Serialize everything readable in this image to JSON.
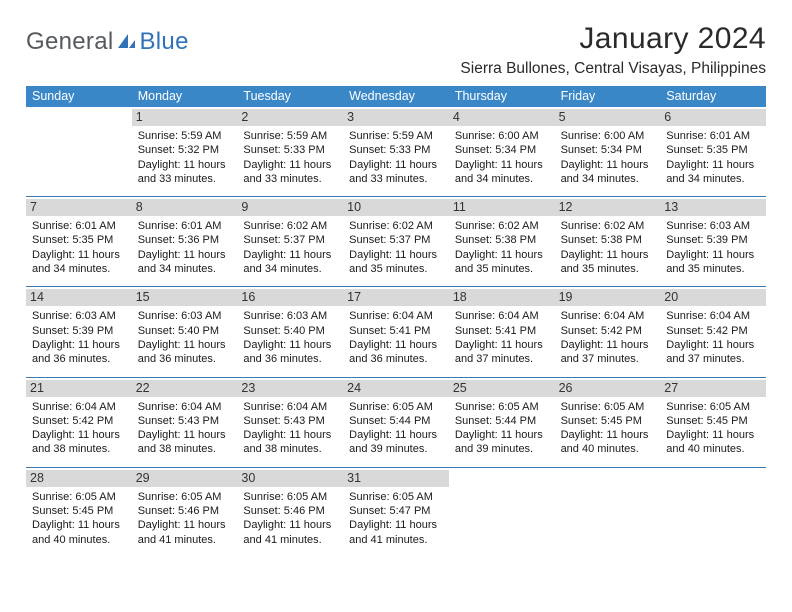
{
  "colors": {
    "header_bar": "#3a87c8",
    "header_text": "#ffffff",
    "daynum_bg": "#d9d9d9",
    "week_divider": "#3a7ab1",
    "logo_gray": "#555a5f",
    "logo_blue": "#2f72b8"
  },
  "logo": {
    "general": "General",
    "blue": "Blue"
  },
  "title": "January 2024",
  "location": "Sierra Bullones, Central Visayas, Philippines",
  "weekdays": [
    "Sunday",
    "Monday",
    "Tuesday",
    "Wednesday",
    "Thursday",
    "Friday",
    "Saturday"
  ],
  "layout": {
    "columns": 7,
    "rows": 5,
    "cell_font_size_pt": 8,
    "header_font_size_pt": 9
  },
  "weeks": [
    [
      {
        "blank": true
      },
      {
        "n": "1",
        "sunrise": "5:59 AM",
        "sunset": "5:32 PM",
        "dh": "11",
        "dm": "33"
      },
      {
        "n": "2",
        "sunrise": "5:59 AM",
        "sunset": "5:33 PM",
        "dh": "11",
        "dm": "33"
      },
      {
        "n": "3",
        "sunrise": "5:59 AM",
        "sunset": "5:33 PM",
        "dh": "11",
        "dm": "33"
      },
      {
        "n": "4",
        "sunrise": "6:00 AM",
        "sunset": "5:34 PM",
        "dh": "11",
        "dm": "34"
      },
      {
        "n": "5",
        "sunrise": "6:00 AM",
        "sunset": "5:34 PM",
        "dh": "11",
        "dm": "34"
      },
      {
        "n": "6",
        "sunrise": "6:01 AM",
        "sunset": "5:35 PM",
        "dh": "11",
        "dm": "34"
      }
    ],
    [
      {
        "n": "7",
        "sunrise": "6:01 AM",
        "sunset": "5:35 PM",
        "dh": "11",
        "dm": "34"
      },
      {
        "n": "8",
        "sunrise": "6:01 AM",
        "sunset": "5:36 PM",
        "dh": "11",
        "dm": "34"
      },
      {
        "n": "9",
        "sunrise": "6:02 AM",
        "sunset": "5:37 PM",
        "dh": "11",
        "dm": "34"
      },
      {
        "n": "10",
        "sunrise": "6:02 AM",
        "sunset": "5:37 PM",
        "dh": "11",
        "dm": "35"
      },
      {
        "n": "11",
        "sunrise": "6:02 AM",
        "sunset": "5:38 PM",
        "dh": "11",
        "dm": "35"
      },
      {
        "n": "12",
        "sunrise": "6:02 AM",
        "sunset": "5:38 PM",
        "dh": "11",
        "dm": "35"
      },
      {
        "n": "13",
        "sunrise": "6:03 AM",
        "sunset": "5:39 PM",
        "dh": "11",
        "dm": "35"
      }
    ],
    [
      {
        "n": "14",
        "sunrise": "6:03 AM",
        "sunset": "5:39 PM",
        "dh": "11",
        "dm": "36"
      },
      {
        "n": "15",
        "sunrise": "6:03 AM",
        "sunset": "5:40 PM",
        "dh": "11",
        "dm": "36"
      },
      {
        "n": "16",
        "sunrise": "6:03 AM",
        "sunset": "5:40 PM",
        "dh": "11",
        "dm": "36"
      },
      {
        "n": "17",
        "sunrise": "6:04 AM",
        "sunset": "5:41 PM",
        "dh": "11",
        "dm": "36"
      },
      {
        "n": "18",
        "sunrise": "6:04 AM",
        "sunset": "5:41 PM",
        "dh": "11",
        "dm": "37"
      },
      {
        "n": "19",
        "sunrise": "6:04 AM",
        "sunset": "5:42 PM",
        "dh": "11",
        "dm": "37"
      },
      {
        "n": "20",
        "sunrise": "6:04 AM",
        "sunset": "5:42 PM",
        "dh": "11",
        "dm": "37"
      }
    ],
    [
      {
        "n": "21",
        "sunrise": "6:04 AM",
        "sunset": "5:42 PM",
        "dh": "11",
        "dm": "38"
      },
      {
        "n": "22",
        "sunrise": "6:04 AM",
        "sunset": "5:43 PM",
        "dh": "11",
        "dm": "38"
      },
      {
        "n": "23",
        "sunrise": "6:04 AM",
        "sunset": "5:43 PM",
        "dh": "11",
        "dm": "38"
      },
      {
        "n": "24",
        "sunrise": "6:05 AM",
        "sunset": "5:44 PM",
        "dh": "11",
        "dm": "39"
      },
      {
        "n": "25",
        "sunrise": "6:05 AM",
        "sunset": "5:44 PM",
        "dh": "11",
        "dm": "39"
      },
      {
        "n": "26",
        "sunrise": "6:05 AM",
        "sunset": "5:45 PM",
        "dh": "11",
        "dm": "40"
      },
      {
        "n": "27",
        "sunrise": "6:05 AM",
        "sunset": "5:45 PM",
        "dh": "11",
        "dm": "40"
      }
    ],
    [
      {
        "n": "28",
        "sunrise": "6:05 AM",
        "sunset": "5:45 PM",
        "dh": "11",
        "dm": "40"
      },
      {
        "n": "29",
        "sunrise": "6:05 AM",
        "sunset": "5:46 PM",
        "dh": "11",
        "dm": "41"
      },
      {
        "n": "30",
        "sunrise": "6:05 AM",
        "sunset": "5:46 PM",
        "dh": "11",
        "dm": "41"
      },
      {
        "n": "31",
        "sunrise": "6:05 AM",
        "sunset": "5:47 PM",
        "dh": "11",
        "dm": "41"
      },
      {
        "blank": true
      },
      {
        "blank": true
      },
      {
        "blank": true
      }
    ]
  ],
  "labels": {
    "sunrise_prefix": "Sunrise: ",
    "sunset_prefix": "Sunset: ",
    "daylight_prefix": "Daylight: ",
    "hours_word": " hours",
    "and_word": "and ",
    "minutes_word": " minutes."
  }
}
